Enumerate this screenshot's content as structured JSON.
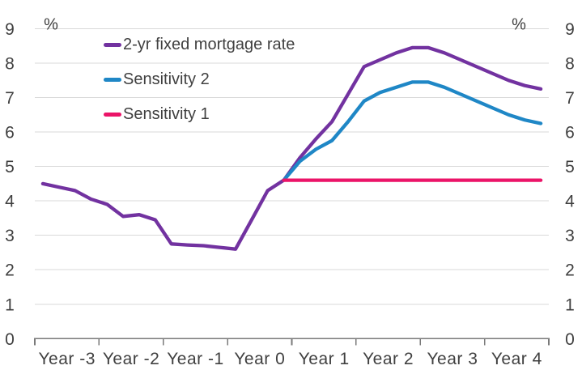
{
  "chart_data": {
    "type": "line",
    "title": "",
    "y_axis": {
      "unit_left": "%",
      "unit_right": "%",
      "min": 0,
      "max": 9,
      "step": 1,
      "tick_labels": [
        "0",
        "1",
        "2",
        "3",
        "4",
        "5",
        "6",
        "7",
        "8",
        "9"
      ],
      "labels_on_both_sides": true
    },
    "x_axis": {
      "categories": [
        "Year -3",
        "Year -2",
        "Year -1",
        "Year 0",
        "Year 1",
        "Year 2",
        "Year 3",
        "Year 4"
      ],
      "points_per_category": 4
    },
    "grid": true,
    "legend_position": "top-left-inside",
    "series": [
      {
        "name": "2-yr fixed mortgage rate",
        "color": "#7232A0",
        "start_index": 0,
        "values": [
          4.5,
          4.4,
          4.3,
          4.05,
          3.9,
          3.55,
          3.6,
          3.45,
          2.75,
          2.72,
          2.7,
          2.65,
          2.6,
          3.45,
          4.3,
          4.6,
          5.25,
          5.8,
          6.3,
          7.1,
          7.9,
          8.1,
          8.3,
          8.45,
          8.45,
          8.3,
          8.1,
          7.9,
          7.7,
          7.5,
          7.35,
          7.25
        ]
      },
      {
        "name": "Sensitivity 2",
        "color": "#1F87C6",
        "start_index": 15,
        "values": [
          4.6,
          5.15,
          5.5,
          5.75,
          6.3,
          6.9,
          7.15,
          7.3,
          7.45,
          7.45,
          7.3,
          7.1,
          6.9,
          6.7,
          6.5,
          6.35,
          6.25
        ]
      },
      {
        "name": "Sensitivity 1",
        "color": "#EB1468",
        "start_index": 15,
        "values": [
          4.6,
          4.6,
          4.6,
          4.6,
          4.6,
          4.6,
          4.6,
          4.6,
          4.6,
          4.6,
          4.6,
          4.6,
          4.6,
          4.6,
          4.6,
          4.6,
          4.6
        ]
      }
    ],
    "style": {
      "grid_color": "#D9D9D9",
      "axis_color": "#7A7A7A",
      "text_color": "#404040",
      "line_width": 4.3
    }
  }
}
